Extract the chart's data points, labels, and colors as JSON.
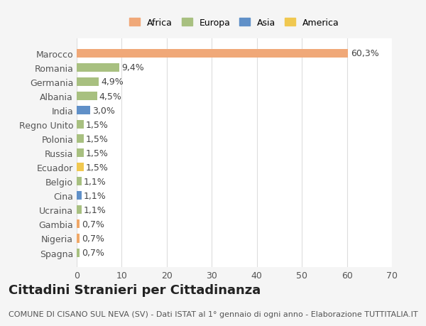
{
  "categories": [
    "Spagna",
    "Nigeria",
    "Gambia",
    "Ucraina",
    "Cina",
    "Belgio",
    "Ecuador",
    "Russia",
    "Polonia",
    "Regno Unito",
    "India",
    "Albania",
    "Germania",
    "Romania",
    "Marocco"
  ],
  "values": [
    0.7,
    0.7,
    0.7,
    1.1,
    1.1,
    1.1,
    1.5,
    1.5,
    1.5,
    1.5,
    3.0,
    4.5,
    4.9,
    9.4,
    60.3
  ],
  "labels": [
    "0,7%",
    "0,7%",
    "0,7%",
    "1,1%",
    "1,1%",
    "1,1%",
    "1,5%",
    "1,5%",
    "1,5%",
    "1,5%",
    "3,0%",
    "4,5%",
    "4,9%",
    "9,4%",
    "60,3%"
  ],
  "colors": [
    "#a8c080",
    "#f0a868",
    "#f0a868",
    "#a8c080",
    "#6090c8",
    "#a8c080",
    "#f0c850",
    "#a8c080",
    "#a8c080",
    "#a8c080",
    "#6090c8",
    "#a8c080",
    "#a8c080",
    "#a8c080",
    "#f0a878"
  ],
  "continent_colors": {
    "Africa": "#f0a878",
    "Europa": "#a8c080",
    "Asia": "#6090c8",
    "America": "#f0c850"
  },
  "xlim": [
    0,
    70
  ],
  "xticks": [
    0,
    10,
    20,
    30,
    40,
    50,
    60,
    70
  ],
  "title": "Cittadini Stranieri per Cittadinanza",
  "subtitle": "COMUNE DI CISANO SUL NEVA (SV) - Dati ISTAT al 1° gennaio di ogni anno - Elaborazione TUTTITALIA.IT",
  "background_color": "#f5f5f5",
  "bar_bg_color": "#ffffff",
  "grid_color": "#dddddd",
  "title_fontsize": 13,
  "subtitle_fontsize": 8,
  "label_fontsize": 9,
  "tick_fontsize": 9
}
